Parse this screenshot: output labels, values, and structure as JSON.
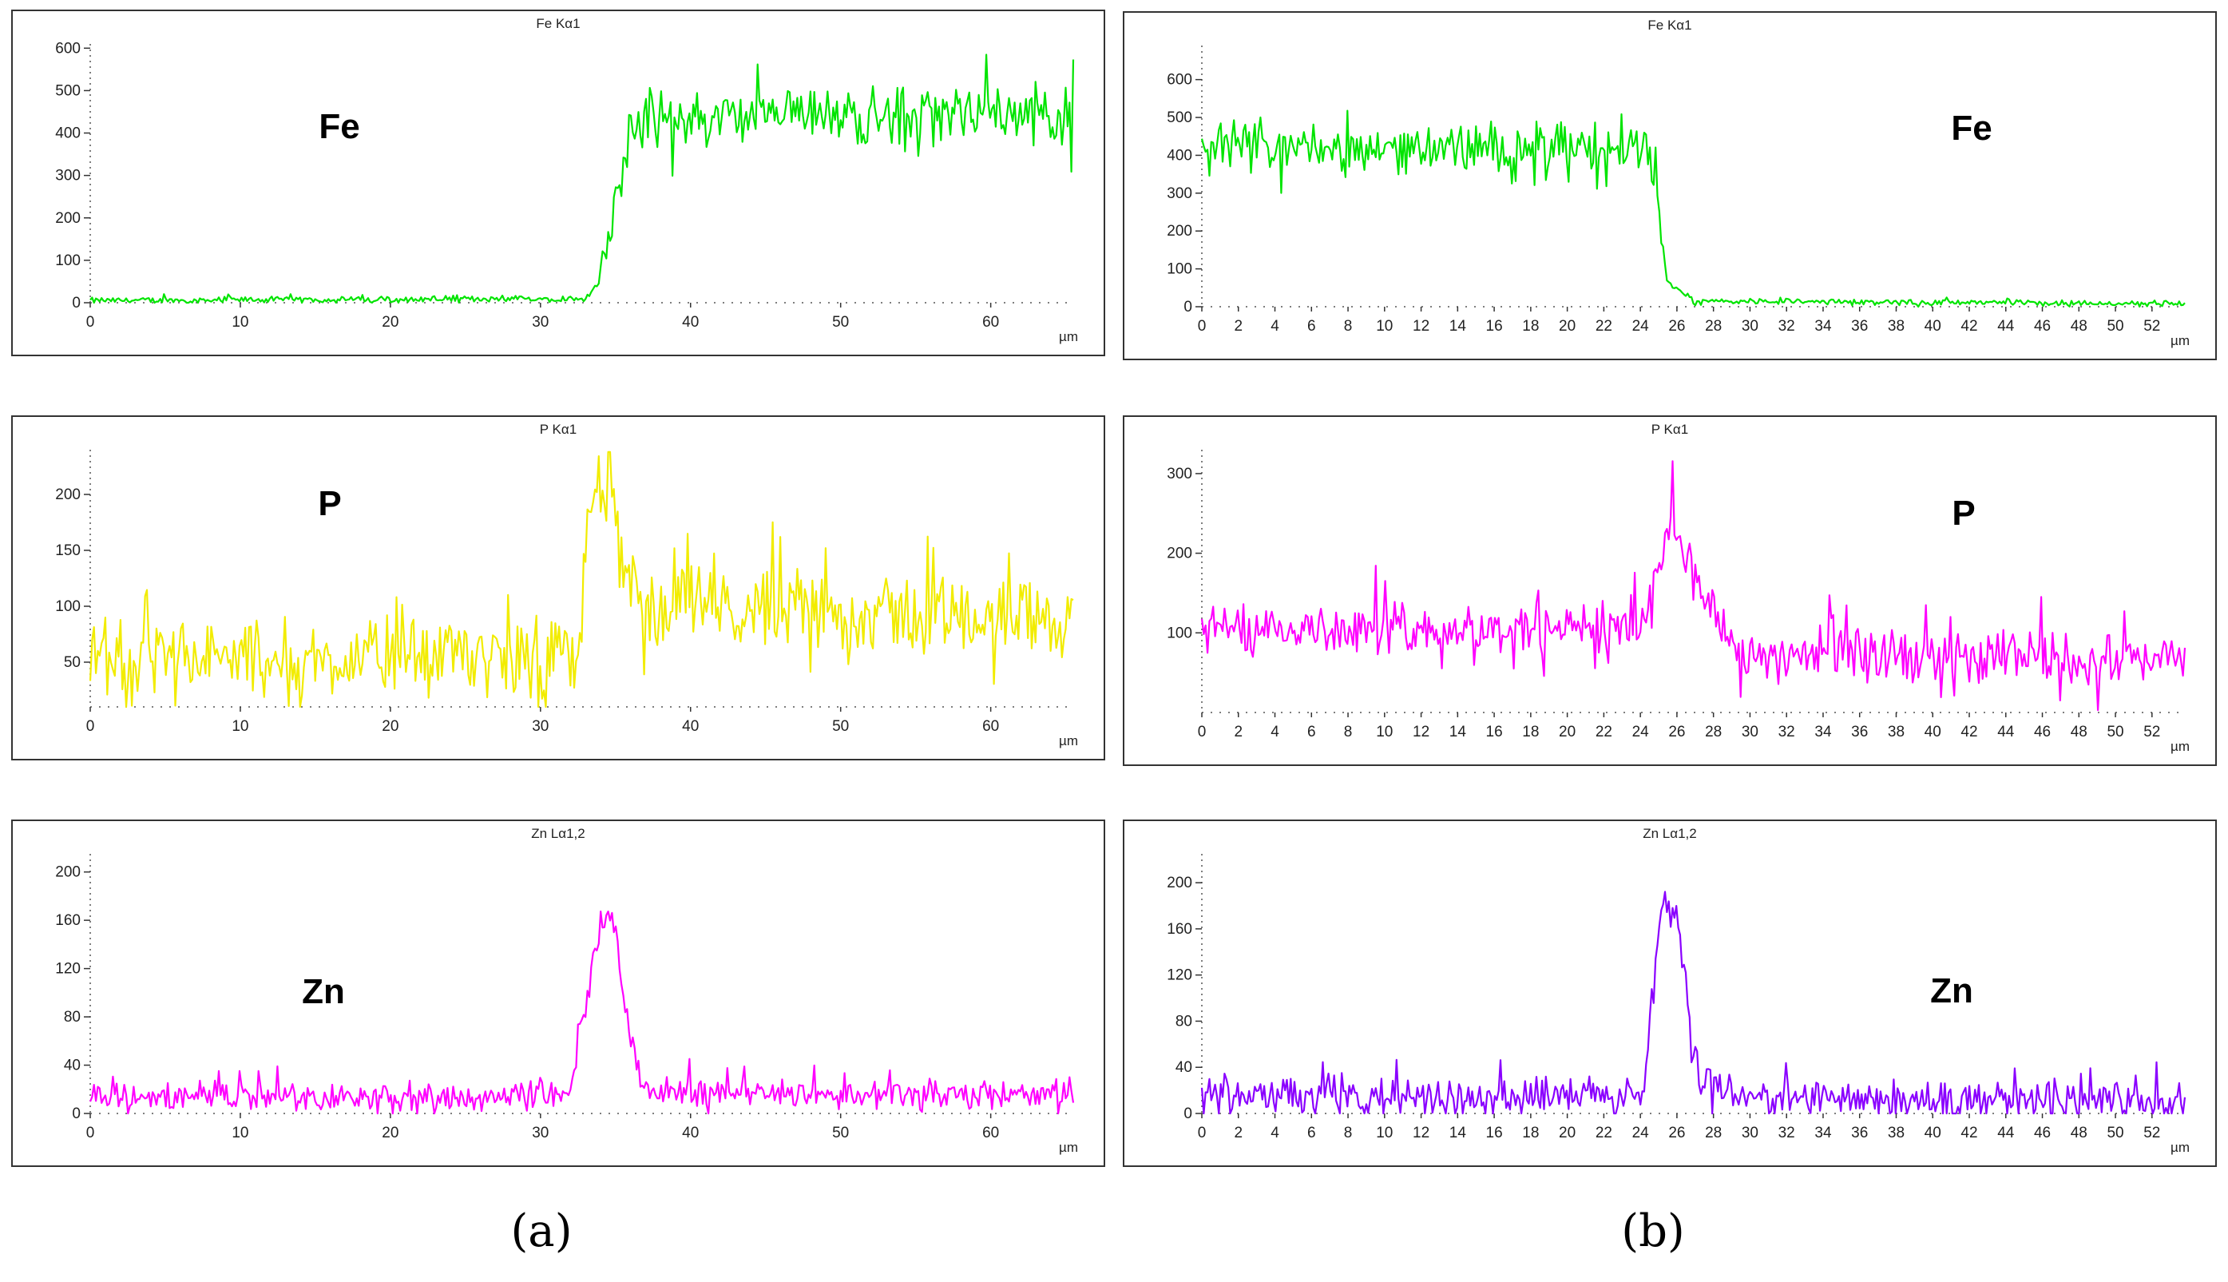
{
  "colors": {
    "frame": "#333333",
    "green": "#00e400",
    "yellow": "#f2ec00",
    "magenta": "#ff00ff",
    "violet": "#8a00ff"
  },
  "panel_labels": {
    "a": "(a)",
    "b": "(b)"
  },
  "chart_data": [
    {
      "id": "a-fe",
      "type": "line",
      "title": "Fe Kα1",
      "element_label": "Fe",
      "xlabel": "µm",
      "xlim": [
        0,
        65.5
      ],
      "ylim": [
        0,
        610
      ],
      "xticks": [
        0,
        10,
        20,
        30,
        40,
        50,
        60
      ],
      "yticks": [
        0,
        100,
        200,
        300,
        400,
        500,
        600
      ],
      "color_key": "green",
      "label_pos": "upper-left",
      "profile": [
        [
          0,
          5
        ],
        [
          33,
          10
        ],
        [
          34,
          50
        ],
        [
          35,
          230
        ],
        [
          36,
          430
        ],
        [
          65.5,
          450
        ]
      ],
      "noise": 55,
      "noise_low": 6,
      "noise_cut": 34
    },
    {
      "id": "a-p",
      "type": "line",
      "title": "P Kα1",
      "element_label": "P",
      "xlabel": "µm",
      "xlim": [
        0,
        65.5
      ],
      "ylim": [
        10,
        240
      ],
      "xticks": [
        0,
        10,
        20,
        30,
        40,
        50,
        60
      ],
      "yticks": [
        50,
        100,
        150,
        200
      ],
      "color_key": "yellow",
      "label_pos": "upper-left",
      "profile": [
        [
          0,
          50
        ],
        [
          32.5,
          55
        ],
        [
          33.3,
          190
        ],
        [
          34.5,
          205
        ],
        [
          35.5,
          130
        ],
        [
          37,
          100
        ],
        [
          65.5,
          90
        ]
      ],
      "noise": 28,
      "noise_low": 28,
      "noise_cut": 0
    },
    {
      "id": "a-zn",
      "type": "line",
      "title": "Zn Lα1,2",
      "element_label": "Zn",
      "xlabel": "µm",
      "xlim": [
        0,
        65.5
      ],
      "ylim": [
        0,
        215
      ],
      "xticks": [
        0,
        10,
        20,
        30,
        40,
        50,
        60
      ],
      "yticks": [
        0,
        40,
        80,
        120,
        160,
        200
      ],
      "color_key": "magenta",
      "label_pos": "middle-left",
      "profile": [
        [
          0,
          13
        ],
        [
          32,
          15
        ],
        [
          33,
          90
        ],
        [
          34,
          160
        ],
        [
          35,
          155
        ],
        [
          36,
          60
        ],
        [
          37,
          18
        ],
        [
          65.5,
          15
        ]
      ],
      "noise": 10,
      "noise_low": 10,
      "noise_cut": 0
    },
    {
      "id": "b-fe",
      "type": "line",
      "title": "Fe Kα1",
      "element_label": "Fe",
      "xlabel": "µm",
      "xlim": [
        0,
        53.8
      ],
      "ylim": [
        0,
        690
      ],
      "xticks": [
        0,
        2,
        4,
        6,
        8,
        10,
        12,
        14,
        16,
        18,
        20,
        22,
        24,
        26,
        28,
        30,
        32,
        34,
        36,
        38,
        40,
        42,
        44,
        46,
        48,
        50,
        52
      ],
      "yticks": [
        0,
        100,
        200,
        300,
        400,
        500,
        600
      ],
      "color_key": "green",
      "label_pos": "upper-right",
      "profile": [
        [
          0,
          420
        ],
        [
          24.3,
          420
        ],
        [
          25,
          260
        ],
        [
          25.6,
          60
        ],
        [
          27,
          15
        ],
        [
          53.8,
          8
        ]
      ],
      "noise": 55,
      "noise_low": 6,
      "noise_cut": 25.5
    },
    {
      "id": "b-p",
      "type": "line",
      "title": "P Kα1",
      "element_label": "P",
      "xlabel": "µm",
      "xlim": [
        0,
        53.8
      ],
      "ylim": [
        0,
        330
      ],
      "xticks": [
        0,
        2,
        4,
        6,
        8,
        10,
        12,
        14,
        16,
        18,
        20,
        22,
        24,
        26,
        28,
        30,
        32,
        34,
        36,
        38,
        40,
        42,
        44,
        46,
        48,
        50,
        52
      ],
      "yticks": [
        100,
        200,
        300
      ],
      "color_key": "magenta",
      "label_pos": "upper-right",
      "profile": [
        [
          0,
          105
        ],
        [
          24,
          105
        ],
        [
          25,
          200
        ],
        [
          25.8,
          250
        ],
        [
          26.6,
          180
        ],
        [
          28,
          130
        ],
        [
          29.5,
          75
        ],
        [
          53.8,
          65
        ]
      ],
      "noise": 28,
      "noise_low": 28,
      "noise_cut": 0
    },
    {
      "id": "b-zn",
      "type": "line",
      "title": "Zn Lα1,2",
      "element_label": "Zn",
      "xlabel": "µm",
      "xlim": [
        0,
        53.8
      ],
      "ylim": [
        0,
        225
      ],
      "xticks": [
        0,
        2,
        4,
        6,
        8,
        10,
        12,
        14,
        16,
        18,
        20,
        22,
        24,
        26,
        28,
        30,
        32,
        34,
        36,
        38,
        40,
        42,
        44,
        46,
        48,
        50,
        52
      ],
      "yticks": [
        0,
        40,
        80,
        120,
        160,
        200
      ],
      "color_key": "violet",
      "label_pos": "middle-right",
      "profile": [
        [
          0,
          15
        ],
        [
          24.2,
          15
        ],
        [
          24.8,
          120
        ],
        [
          25.3,
          190
        ],
        [
          26,
          175
        ],
        [
          26.6,
          90
        ],
        [
          27.3,
          25
        ],
        [
          28,
          35
        ],
        [
          29,
          12
        ],
        [
          53.8,
          10
        ]
      ],
      "noise": 14,
      "noise_low": 14,
      "noise_cut": 0
    }
  ]
}
